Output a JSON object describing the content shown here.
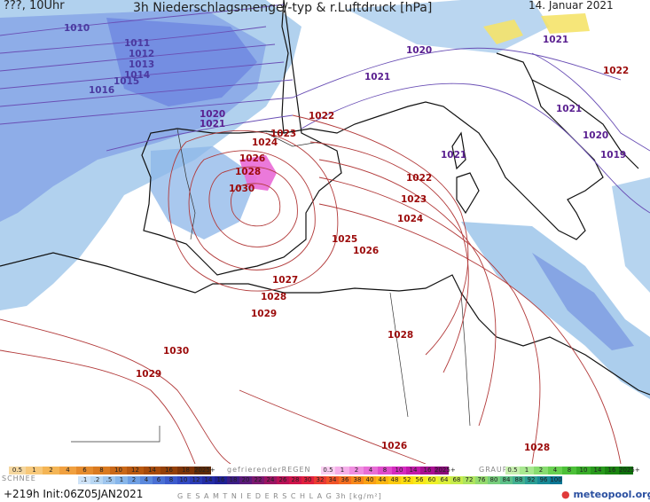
{
  "header": {
    "left": "???, 10Uhr",
    "title": "3h Niederschlagsmenge/-typ & r.Luftdruck [hPa]",
    "date": "14. Januar 2021"
  },
  "isobar_labels": [
    {
      "text": "1010",
      "color": "#4a3aa0"
    },
    {
      "text": "1011",
      "color": "#4a3aa0"
    },
    {
      "text": "1012",
      "color": "#4a3aa0"
    },
    {
      "text": "1013",
      "color": "#4a3aa0"
    },
    {
      "text": "1014",
      "color": "#4a3aa0"
    },
    {
      "text": "1015",
      "color": "#4a3aa0"
    },
    {
      "text": "1016",
      "color": "#4a3aa0"
    },
    {
      "text": "1020",
      "color": "#5a2090"
    },
    {
      "text": "1021",
      "color": "#5a2090"
    },
    {
      "text": "1020",
      "color": "#5a2090"
    },
    {
      "text": "1021",
      "color": "#5a2090"
    },
    {
      "text": "1021",
      "color": "#5a2090"
    },
    {
      "text": "1021",
      "color": "#5a2090"
    },
    {
      "text": "1021",
      "color": "#5a2090"
    },
    {
      "text": "1020",
      "color": "#5a2090"
    },
    {
      "text": "1019",
      "color": "#5a2090"
    },
    {
      "text": "1022",
      "color": "#9b0a0a"
    },
    {
      "text": "1023",
      "color": "#9b0a0a"
    },
    {
      "text": "1024",
      "color": "#9b0a0a"
    },
    {
      "text": "1026",
      "color": "#9b0a0a"
    },
    {
      "text": "1028",
      "color": "#9b0a0a"
    },
    {
      "text": "1030",
      "color": "#9b0a0a"
    },
    {
      "text": "1022",
      "color": "#9b0a0a"
    },
    {
      "text": "1023",
      "color": "#9b0a0a"
    },
    {
      "text": "1024",
      "color": "#9b0a0a"
    },
    {
      "text": "1025",
      "color": "#9b0a0a"
    },
    {
      "text": "1026",
      "color": "#9b0a0a"
    },
    {
      "text": "1027",
      "color": "#9b0a0a"
    },
    {
      "text": "1028",
      "color": "#9b0a0a"
    },
    {
      "text": "1029",
      "color": "#9b0a0a"
    },
    {
      "text": "1028",
      "color": "#9b0a0a"
    },
    {
      "text": "1030",
      "color": "#9b0a0a"
    },
    {
      "text": "1029",
      "color": "#9b0a0a"
    },
    {
      "text": "1026",
      "color": "#9b0a0a"
    },
    {
      "text": "1028",
      "color": "#9b0a0a"
    },
    {
      "text": "1022",
      "color": "#9b0a0a"
    }
  ],
  "legend": {
    "snow_label": "SCHNEE",
    "freezing_label": "gefrierenderREGEN",
    "graupel_label": "GRAUPEL",
    "total_label": "G E S A M T N I E D E R S C H L A G   3h   [kg/m²]",
    "snow_scale": [
      "0.5",
      "1",
      "2",
      "4",
      "6",
      "8",
      "10",
      "12",
      "14",
      "16",
      "18",
      "2025+"
    ],
    "freezing_scale": [
      "0.5",
      "1",
      "2",
      "4",
      "8",
      "10",
      "14",
      "16",
      "2025+"
    ],
    "graupel_scale": [
      "0.5",
      "1",
      "2",
      "4",
      "8",
      "10",
      "14",
      "16",
      "2025+"
    ],
    "total_scale": [
      ".1",
      ".2",
      ".5",
      "1",
      "2",
      "4",
      "6",
      "8",
      "10",
      "12",
      "14",
      "16",
      "18",
      "20",
      "22",
      "24",
      "26",
      "28",
      "30",
      "32",
      "34",
      "36",
      "38",
      "40",
      "44",
      "48",
      "52",
      "56",
      "60",
      "64",
      "68",
      "72",
      "76",
      "80",
      "84",
      "88",
      "92",
      "96",
      "100"
    ],
    "colors": {
      "snow": [
        "#f5d7a0",
        "#f7c87a",
        "#f4b555",
        "#f0a040",
        "#e58b2e",
        "#d97a20",
        "#c96818",
        "#b85810",
        "#a64a0a",
        "#944008",
        "#7e3406",
        "#5e2a06"
      ],
      "freezing": [
        "#fbd0f2",
        "#f6b0ea",
        "#f08ee0",
        "#e86ed6",
        "#e04ccc",
        "#d52ac0",
        "#c218aa",
        "#a80e92",
        "#8a0a7a"
      ],
      "graupel": [
        "#c8f0b0",
        "#a8e890",
        "#88dc70",
        "#68d050",
        "#4cc038",
        "#38ac28",
        "#28981c",
        "#1a8410",
        "#0e700a"
      ],
      "total": [
        "#cfe3f7",
        "#b8d7f3",
        "#9fc6ee",
        "#87b6ea",
        "#6e9fe3",
        "#5a88dc",
        "#4a70d4",
        "#3c5bcc",
        "#3249c2",
        "#2a3bb4",
        "#232ca4",
        "#1e2094",
        "#3a1c84",
        "#5a1a7a",
        "#7a186e",
        "#9a1462",
        "#b81256",
        "#cf144a",
        "#e0203e",
        "#ea3a32",
        "#f05428",
        "#f46e20",
        "#f7881a",
        "#f9a014",
        "#fab612",
        "#fbca10",
        "#fcdc10",
        "#f8e81a",
        "#eef028",
        "#dcf03a",
        "#c6ec4c",
        "#aee45e",
        "#94da6e",
        "#78ce7c",
        "#5cc088",
        "#42b090",
        "#2a9e94",
        "#188a96",
        "#0a7694"
      ]
    }
  },
  "footer": {
    "run": "+219h Init:06Z05JAN2021",
    "brand": "meteopool.org"
  }
}
